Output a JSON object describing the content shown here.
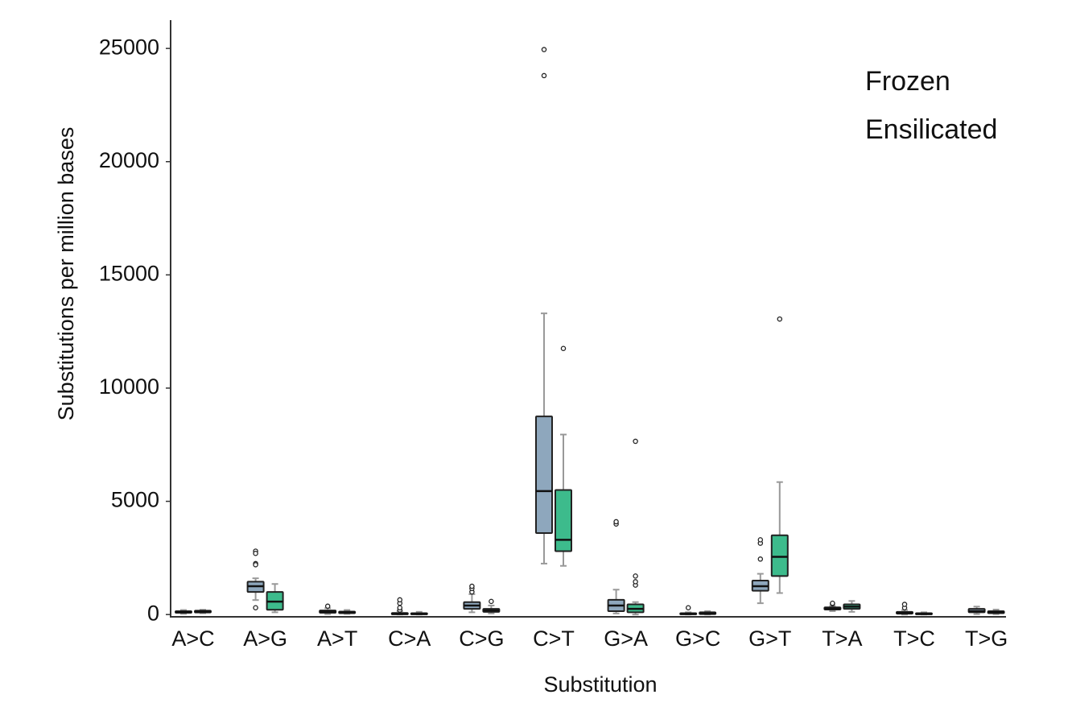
{
  "chart_data": {
    "type": "box",
    "x_label": "Substitution",
    "y_label": "Substitutions per million bases",
    "categories": [
      "A>C",
      "A>G",
      "A>T",
      "C>A",
      "C>G",
      "C>T",
      "G>A",
      "G>C",
      "G>T",
      "T>A",
      "T>C",
      "T>G"
    ],
    "ylim": [
      -100,
      26250
    ],
    "yticks": [
      0,
      5000,
      10000,
      15000,
      20000,
      25000
    ],
    "legend": "top-right",
    "series": [
      {
        "name": "Frozen",
        "color": "#8ea7bd",
        "boxes": [
          {
            "min": 30,
            "q1": 80,
            "median": 110,
            "q3": 150,
            "max": 200,
            "outliers": []
          },
          {
            "min": 640,
            "q1": 1000,
            "median": 1250,
            "q3": 1450,
            "max": 1600,
            "outliers": [
              2800,
              2700,
              2250,
              2200,
              300
            ]
          },
          {
            "min": 20,
            "q1": 80,
            "median": 130,
            "q3": 180,
            "max": 280,
            "outliers": [
              370
            ]
          },
          {
            "min": 0,
            "q1": 10,
            "median": 40,
            "q3": 70,
            "max": 150,
            "outliers": [
              200,
              300,
              500,
              650
            ]
          },
          {
            "min": 100,
            "q1": 250,
            "median": 400,
            "q3": 550,
            "max": 900,
            "outliers": [
              1000,
              1150,
              1250
            ]
          },
          {
            "min": 2250,
            "q1": 3600,
            "median": 5450,
            "q3": 8750,
            "max": 13300,
            "outliers": [
              23800,
              24950
            ]
          },
          {
            "min": 50,
            "q1": 150,
            "median": 400,
            "q3": 650,
            "max": 1100,
            "outliers": [
              4000,
              4100
            ]
          },
          {
            "min": 0,
            "q1": 10,
            "median": 30,
            "q3": 60,
            "max": 100,
            "outliers": [
              300
            ]
          },
          {
            "min": 500,
            "q1": 1050,
            "median": 1250,
            "q3": 1500,
            "max": 1800,
            "outliers": [
              2450,
              3150,
              3300
            ]
          },
          {
            "min": 150,
            "q1": 220,
            "median": 270,
            "q3": 320,
            "max": 380,
            "outliers": [
              480,
              500
            ]
          },
          {
            "min": 0,
            "q1": 40,
            "median": 80,
            "q3": 120,
            "max": 200,
            "outliers": [
              300,
              450
            ]
          },
          {
            "min": 20,
            "q1": 100,
            "median": 150,
            "q3": 250,
            "max": 350,
            "outliers": []
          }
        ]
      },
      {
        "name": "Ensilicated",
        "color": "#3dbb8c",
        "boxes": [
          {
            "min": 60,
            "q1": 90,
            "median": 130,
            "q3": 170,
            "max": 210,
            "outliers": []
          },
          {
            "min": 100,
            "q1": 210,
            "median": 570,
            "q3": 1000,
            "max": 1350,
            "outliers": []
          },
          {
            "min": 30,
            "q1": 60,
            "median": 100,
            "q3": 130,
            "max": 200,
            "outliers": []
          },
          {
            "min": 0,
            "q1": 10,
            "median": 30,
            "q3": 60,
            "max": 120,
            "outliers": []
          },
          {
            "min": 50,
            "q1": 120,
            "median": 180,
            "q3": 250,
            "max": 400,
            "outliers": [
              580
            ]
          },
          {
            "min": 2150,
            "q1": 2800,
            "median": 3300,
            "q3": 5500,
            "max": 7950,
            "outliers": [
              11750
            ]
          },
          {
            "min": 0,
            "q1": 100,
            "median": 250,
            "q3": 450,
            "max": 550,
            "outliers": [
              1300,
              1450,
              1700,
              7650
            ]
          },
          {
            "min": 0,
            "q1": 20,
            "median": 50,
            "q3": 100,
            "max": 150,
            "outliers": []
          },
          {
            "min": 950,
            "q1": 1700,
            "median": 2550,
            "q3": 3500,
            "max": 5850,
            "outliers": [
              13050
            ]
          },
          {
            "min": 120,
            "q1": 250,
            "median": 350,
            "q3": 450,
            "max": 600,
            "outliers": []
          },
          {
            "min": 0,
            "q1": 10,
            "median": 30,
            "q3": 60,
            "max": 100,
            "outliers": []
          },
          {
            "min": 20,
            "q1": 60,
            "median": 100,
            "q3": 150,
            "max": 220,
            "outliers": []
          }
        ]
      }
    ]
  }
}
